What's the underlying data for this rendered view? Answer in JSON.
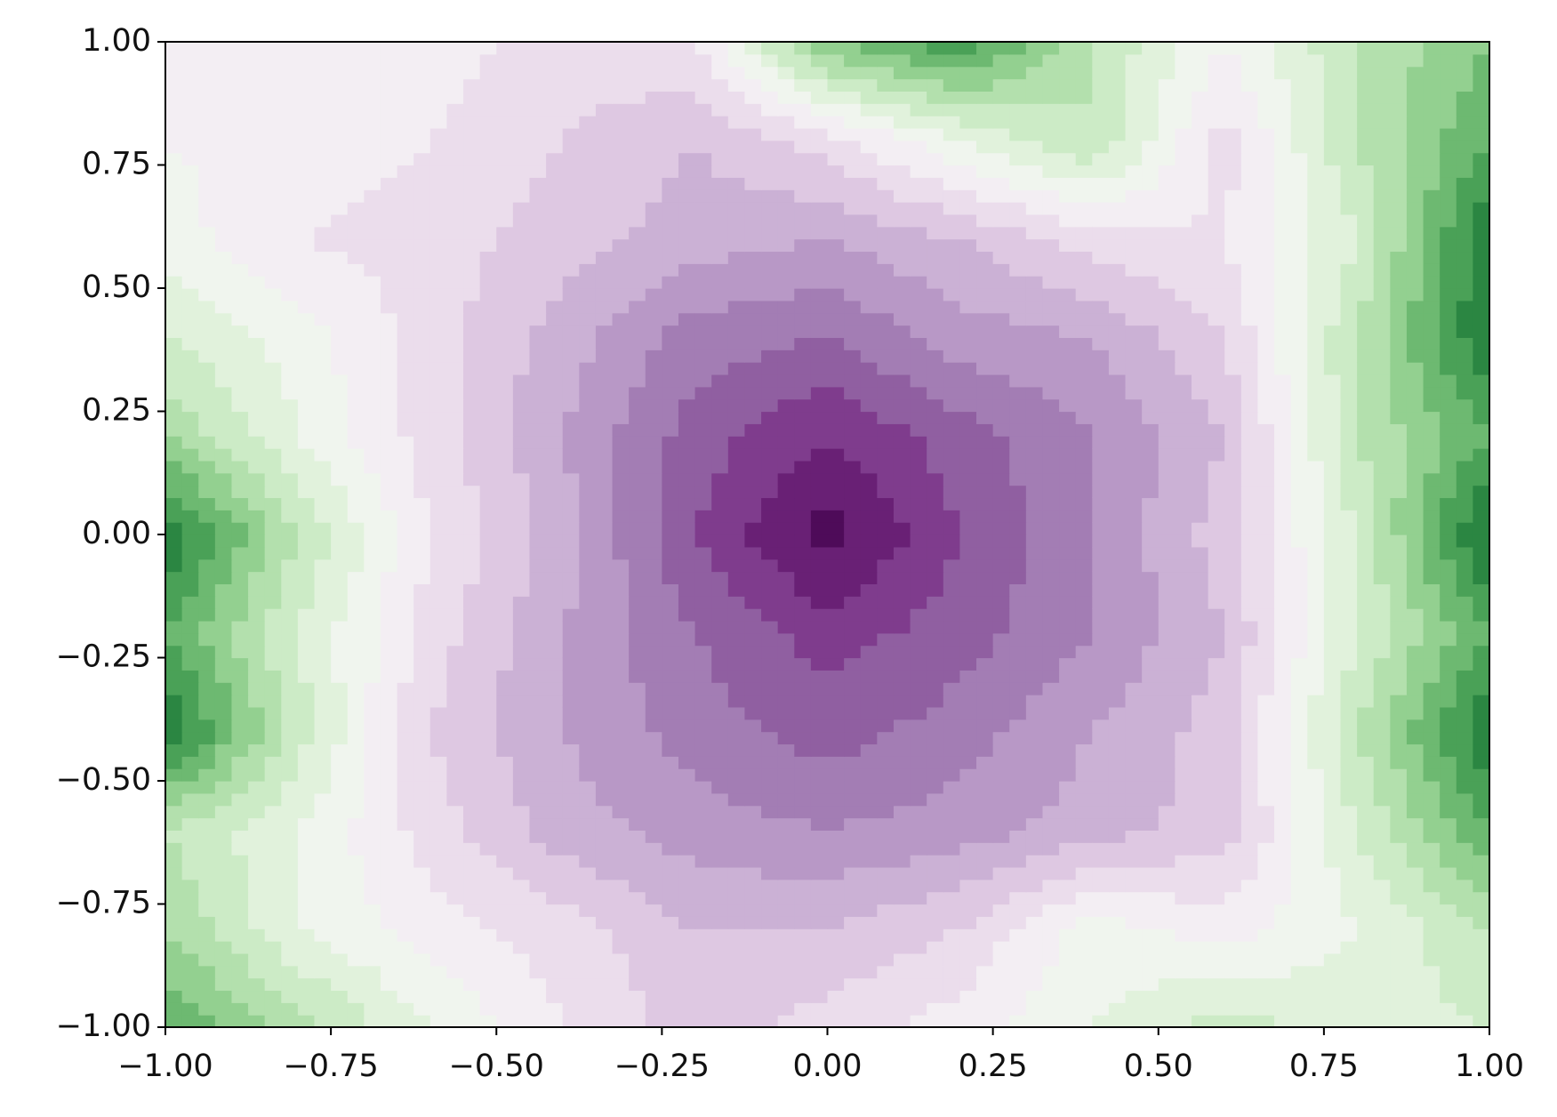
{
  "chart_data": {
    "type": "contourf",
    "x": [
      -1.0,
      -0.8,
      -0.6,
      -0.4,
      -0.2,
      0.0,
      0.2,
      0.4,
      0.6,
      0.8,
      1.0
    ],
    "y": [
      -1.0,
      -0.8,
      -0.6,
      -0.4,
      -0.2,
      0.0,
      0.2,
      0.4,
      0.6,
      0.8,
      1.0
    ],
    "z": [
      [
        0.6,
        0.35,
        0.1,
        -0.1,
        -0.25,
        -0.15,
        -0.05,
        0.1,
        0.25,
        0.15,
        0.2
      ],
      [
        0.4,
        0.1,
        -0.05,
        -0.15,
        -0.3,
        -0.3,
        -0.2,
        0.05,
        -0.05,
        0.1,
        0.3
      ],
      [
        0.3,
        0.1,
        -0.15,
        -0.35,
        -0.45,
        -0.5,
        -0.45,
        -0.35,
        -0.25,
        0.2,
        0.6
      ],
      [
        0.8,
        0.25,
        -0.2,
        -0.4,
        -0.55,
        -0.65,
        -0.55,
        -0.4,
        -0.25,
        0.3,
        0.8
      ],
      [
        0.6,
        0.2,
        -0.15,
        -0.4,
        -0.6,
        -0.75,
        -0.65,
        -0.5,
        -0.3,
        0.2,
        0.6
      ],
      [
        0.8,
        0.3,
        -0.1,
        -0.35,
        -0.7,
        -0.95,
        -0.7,
        -0.5,
        -0.25,
        0.2,
        0.85
      ],
      [
        0.4,
        0.1,
        -0.15,
        -0.4,
        -0.65,
        -0.8,
        -0.65,
        -0.5,
        -0.3,
        0.3,
        0.6
      ],
      [
        0.2,
        0.05,
        -0.15,
        -0.35,
        -0.55,
        -0.6,
        -0.45,
        -0.4,
        -0.2,
        0.3,
        0.8
      ],
      [
        0.05,
        -0.1,
        -0.15,
        -0.25,
        -0.35,
        -0.4,
        -0.3,
        -0.15,
        -0.1,
        0.2,
        0.8
      ],
      [
        0.0,
        -0.05,
        -0.1,
        -0.2,
        -0.3,
        -0.15,
        0.1,
        0.3,
        -0.15,
        0.3,
        0.6
      ],
      [
        0.0,
        0.0,
        -0.05,
        -0.15,
        -0.1,
        0.5,
        0.7,
        0.3,
        0.0,
        0.3,
        0.5
      ]
    ],
    "zlim": [
      -1,
      1
    ],
    "levels": 20,
    "cmap_colors": [
      "#40004b",
      "#762a83",
      "#9970ab",
      "#c2a5cf",
      "#e7d4e8",
      "#f7f7f7",
      "#d9f0d3",
      "#a6dba0",
      "#5aae61",
      "#1b7837",
      "#00441b"
    ],
    "xlim": [
      -1,
      1
    ],
    "ylim": [
      -1,
      1
    ],
    "xticks": [
      {
        "value": -1,
        "label": "−1.00"
      },
      {
        "value": -0.75,
        "label": "−0.75"
      },
      {
        "value": -0.5,
        "label": "−0.50"
      },
      {
        "value": -0.25,
        "label": "−0.25"
      },
      {
        "value": 0,
        "label": "0.00"
      },
      {
        "value": 0.25,
        "label": "0.25"
      },
      {
        "value": 0.5,
        "label": "0.50"
      },
      {
        "value": 0.75,
        "label": "0.75"
      },
      {
        "value": 1,
        "label": "1.00"
      }
    ],
    "yticks": [
      {
        "value": -1,
        "label": "−1.00"
      },
      {
        "value": -0.75,
        "label": "−0.75"
      },
      {
        "value": -0.5,
        "label": "−0.50"
      },
      {
        "value": -0.25,
        "label": "−0.25"
      },
      {
        "value": 0,
        "label": "0.00"
      },
      {
        "value": 0.25,
        "label": "0.25"
      },
      {
        "value": 0.5,
        "label": "0.50"
      },
      {
        "value": 0.75,
        "label": "0.75"
      },
      {
        "value": 1,
        "label": "1.00"
      }
    ]
  }
}
